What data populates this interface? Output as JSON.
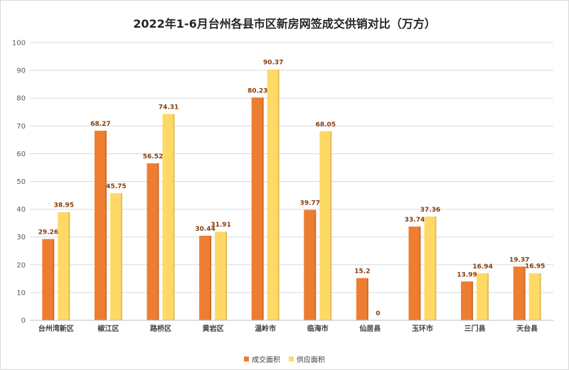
{
  "chart_data": {
    "type": "bar",
    "title": "2022年1-6月台州各县市区新房网签成交供销对比（万方）",
    "categories": [
      "台州湾新区",
      "椒江区",
      "路桥区",
      "黄岩区",
      "温岭市",
      "临海市",
      "仙居县",
      "玉环市",
      "三门县",
      "天台县"
    ],
    "series": [
      {
        "name": "成交面积",
        "color": "#ed7d31",
        "values": [
          29.26,
          68.27,
          56.52,
          30.44,
          80.23,
          39.77,
          15.2,
          33.74,
          13.99,
          19.37
        ],
        "labels": [
          "29.26",
          "68.27",
          "56.52",
          "30.44",
          "80.23",
          "39.77",
          "15.2",
          "33.74",
          "13.99",
          "19.37"
        ]
      },
      {
        "name": "供应面积",
        "color": "#ffd966",
        "values": [
          38.95,
          45.75,
          74.31,
          31.91,
          90.37,
          68.05,
          0,
          37.36,
          16.94,
          16.95
        ],
        "labels": [
          "38.95",
          "45.75",
          "74.31",
          "31.91",
          "90.37",
          "68.05",
          "0",
          "37.36",
          "16.94",
          "16.95"
        ]
      }
    ],
    "ylim": [
      0,
      100
    ],
    "yticks": [
      0,
      10,
      20,
      30,
      40,
      50,
      60,
      70,
      80,
      90,
      100
    ],
    "grid": true,
    "legend_position": "bottom",
    "label_color": "#843c0c"
  }
}
